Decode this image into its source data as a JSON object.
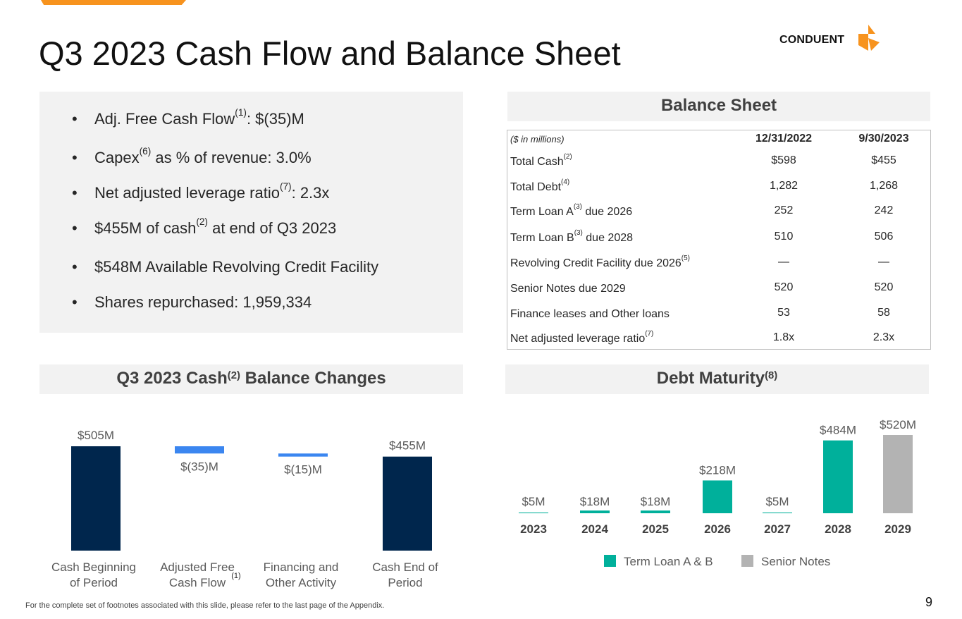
{
  "slide": {
    "title": "Q3 2023 Cash Flow and Balance Sheet",
    "logo_text": "CONDUENT",
    "footnote": "For the complete set of footnotes associated with this slide, please refer to the last page of the Appendix.",
    "page_number": "9",
    "accent_color": "#f7931e"
  },
  "bullets": [
    {
      "pre": "Adj. Free Cash Flow",
      "sup": "(1)",
      "post": ": $(35)M"
    },
    {
      "pre": "Capex",
      "sup": "(6)",
      "post": " as % of revenue: 3.0%"
    },
    {
      "pre": "Net adjusted leverage ratio",
      "sup": "(7)",
      "post": ": 2.3x"
    },
    {
      "pre": "$455M of cash",
      "sup": "(2)",
      "post": " at end of Q3 2023"
    },
    {
      "pre": "$548M Available Revolving Credit Facility",
      "sup": "",
      "post": ""
    },
    {
      "pre": "Shares repurchased: 1,959,334",
      "sup": "",
      "post": ""
    }
  ],
  "bullet_glyph": "•",
  "balance_sheet": {
    "header": "Balance Sheet",
    "columns": {
      "label": "($ in millions)",
      "col1": "12/31/2022",
      "col2": "9/30/2023"
    },
    "rows": [
      {
        "pre": "Total Cash",
        "sup": "(2)",
        "post": "",
        "v1": "$598",
        "v2": "$455"
      },
      {
        "pre": "Total Debt",
        "sup": "(4)",
        "post": "",
        "v1": "1,282",
        "v2": "1,268"
      },
      {
        "pre": "Term Loan A",
        "sup": "(3)",
        "post": " due 2026",
        "v1": "252",
        "v2": "242"
      },
      {
        "pre": "Term Loan B",
        "sup": "(3)",
        "post": " due 2028",
        "v1": "510",
        "v2": "506"
      },
      {
        "pre": "Revolving Credit Facility due 2026",
        "sup": "(5)",
        "post": "",
        "v1": "—",
        "v2": "—"
      },
      {
        "pre": "Senior Notes due 2029",
        "sup": "",
        "post": "",
        "v1": "520",
        "v2": "520"
      },
      {
        "pre": "Finance leases and Other loans",
        "sup": "",
        "post": "",
        "v1": "53",
        "v2": "58"
      },
      {
        "pre": "Net adjusted leverage ratio",
        "sup": "(7)",
        "post": "",
        "v1": "1.8x",
        "v2": "2.3x"
      }
    ]
  },
  "chart_data": [
    {
      "type": "bar",
      "title_pre": "Q3 2023 Cash",
      "title_sup": "(2)",
      "title_post": " Balance Changes",
      "categories": [
        {
          "line1": "Cash Beginning",
          "line2": "of  Period",
          "sup": ""
        },
        {
          "line1": "Adjusted Free",
          "line2": "Cash Flow",
          "sup": "(1)"
        },
        {
          "line1": "Financing and",
          "line2": "Other Activity",
          "sup": ""
        },
        {
          "line1": "Cash End of",
          "line2": "Period",
          "sup": ""
        }
      ],
      "values": [
        505,
        -35,
        -15,
        455
      ],
      "labels": [
        "$505M",
        "$(35)M",
        "$(15)M",
        "$455M"
      ],
      "colors": [
        "#00264d",
        "#3b86f0",
        "#3b86f0",
        "#00264d"
      ],
      "waterfall": true
    },
    {
      "type": "bar",
      "title_pre": "Debt Maturity",
      "title_sup": "(8)",
      "title_post": "",
      "categories": [
        "2023",
        "2024",
        "2025",
        "2026",
        "2027",
        "2028",
        "2029"
      ],
      "values": [
        5,
        18,
        18,
        218,
        5,
        484,
        520
      ],
      "labels": [
        "$5M",
        "$18M",
        "$18M",
        "$218M",
        "$5M",
        "$484M",
        "$520M"
      ],
      "series_by_bar": [
        "Term Loan A & B",
        "Term Loan A & B",
        "Term Loan A & B",
        "Term Loan A & B",
        "Term Loan A & B",
        "Term Loan A & B",
        "Senior Notes"
      ],
      "legend": [
        {
          "name": "Term Loan A & B",
          "color": "#00b09b"
        },
        {
          "name": "Senior Notes",
          "color": "#b3b3b3"
        }
      ]
    }
  ]
}
